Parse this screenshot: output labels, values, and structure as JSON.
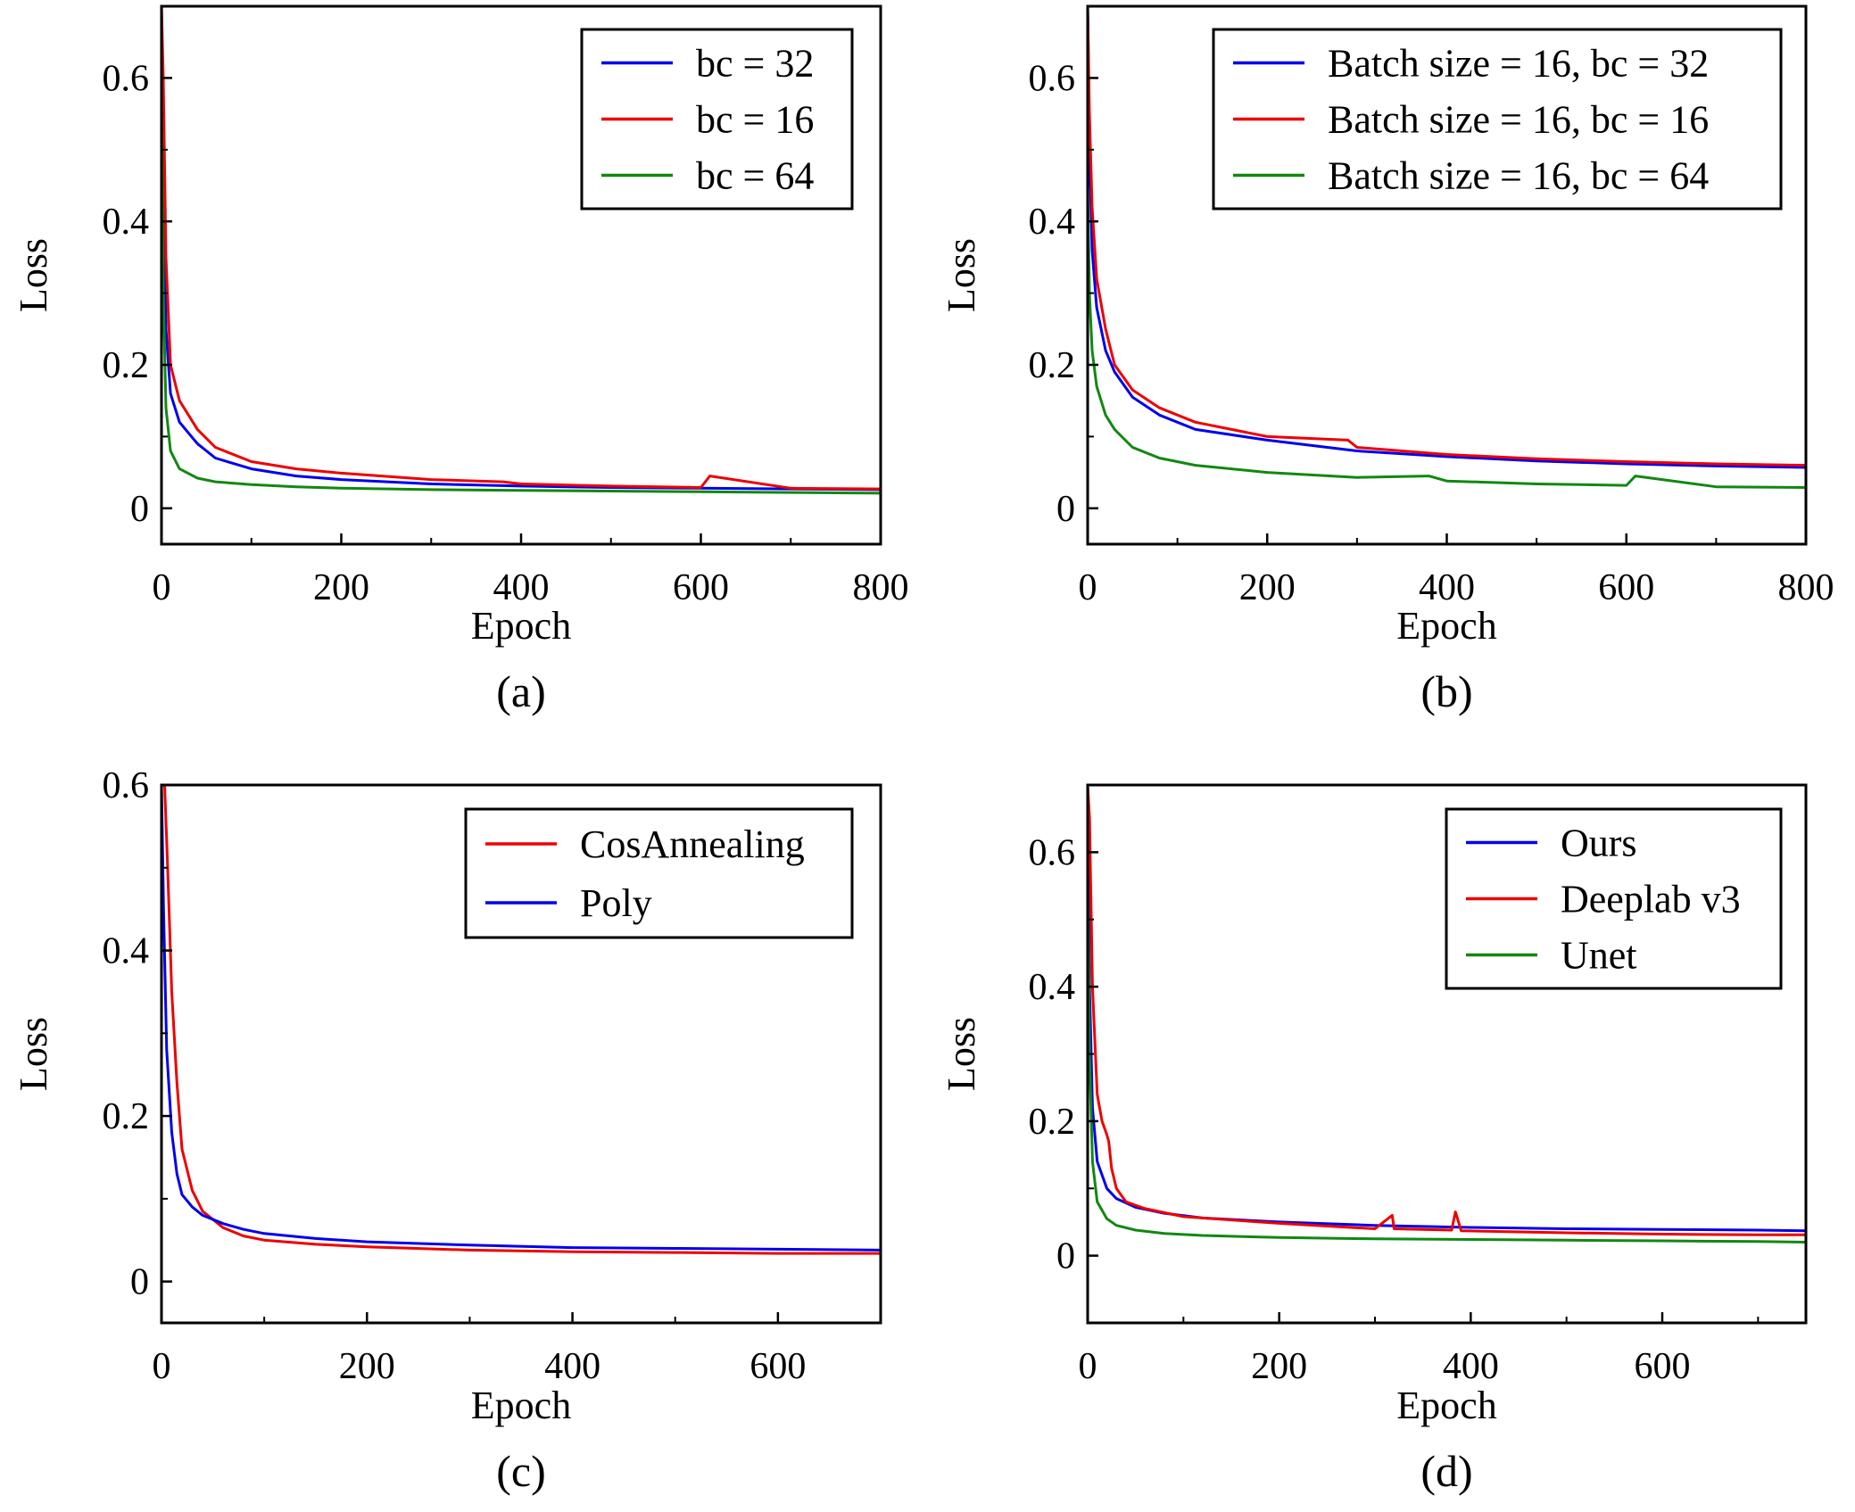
{
  "colors": {
    "blue": "#0000ee",
    "red": "#ee0000",
    "green": "#118811",
    "axis": "#000000"
  },
  "chart_data": [
    {
      "type": "line",
      "panel_label": "(a)",
      "xlabel": "Epoch",
      "ylabel": "Loss",
      "xlim": [
        0,
        800
      ],
      "ylim": [
        -0.05,
        0.7
      ],
      "xticks": [
        0,
        200,
        400,
        600,
        800
      ],
      "yticks": [
        0,
        0.2,
        0.4,
        0.6
      ],
      "xtick_labels": [
        "0",
        "200",
        "400",
        "600",
        "800"
      ],
      "ytick_labels": [
        "0",
        "0.2",
        "0.4",
        "0.6"
      ],
      "legend_position": "top-right",
      "grid": false,
      "series": [
        {
          "name": "bc = 32",
          "color": "blue",
          "x": [
            0,
            2,
            5,
            10,
            20,
            40,
            60,
            100,
            150,
            200,
            300,
            400,
            500,
            600,
            700,
            800
          ],
          "y": [
            0.7,
            0.45,
            0.25,
            0.16,
            0.12,
            0.09,
            0.07,
            0.055,
            0.045,
            0.04,
            0.034,
            0.031,
            0.029,
            0.028,
            0.027,
            0.026
          ]
        },
        {
          "name": "bc = 16",
          "color": "red",
          "x": [
            0,
            2,
            5,
            10,
            20,
            40,
            60,
            100,
            150,
            200,
            300,
            380,
            400,
            500,
            600,
            610,
            700,
            800
          ],
          "y": [
            0.7,
            0.6,
            0.35,
            0.2,
            0.15,
            0.11,
            0.085,
            0.065,
            0.055,
            0.049,
            0.04,
            0.037,
            0.034,
            0.031,
            0.029,
            0.045,
            0.028,
            0.027
          ]
        },
        {
          "name": "bc = 64",
          "color": "green",
          "x": [
            0,
            2,
            5,
            10,
            20,
            40,
            60,
            100,
            150,
            200,
            300,
            400,
            500,
            600,
            700,
            800
          ],
          "y": [
            0.57,
            0.3,
            0.14,
            0.08,
            0.055,
            0.042,
            0.037,
            0.033,
            0.03,
            0.028,
            0.026,
            0.025,
            0.024,
            0.023,
            0.022,
            0.021
          ]
        }
      ]
    },
    {
      "type": "line",
      "panel_label": "(b)",
      "xlabel": "Epoch",
      "ylabel": "Loss",
      "xlim": [
        0,
        800
      ],
      "ylim": [
        -0.05,
        0.7
      ],
      "xticks": [
        0,
        200,
        400,
        600,
        800
      ],
      "yticks": [
        0,
        0.2,
        0.4,
        0.6
      ],
      "xtick_labels": [
        "0",
        "200",
        "400",
        "600",
        "800"
      ],
      "ytick_labels": [
        "0",
        "0.2",
        "0.4",
        "0.6"
      ],
      "legend_position": "top-right",
      "grid": false,
      "series": [
        {
          "name": "Batch size = 16, bc = 32",
          "color": "blue",
          "x": [
            0,
            2,
            5,
            10,
            20,
            30,
            50,
            80,
            120,
            200,
            300,
            400,
            500,
            600,
            700,
            800
          ],
          "y": [
            0.7,
            0.5,
            0.36,
            0.28,
            0.22,
            0.19,
            0.155,
            0.13,
            0.11,
            0.095,
            0.08,
            0.072,
            0.066,
            0.062,
            0.059,
            0.057
          ]
        },
        {
          "name": "Batch size = 16, bc = 16",
          "color": "red",
          "x": [
            0,
            2,
            5,
            10,
            20,
            30,
            50,
            80,
            120,
            200,
            290,
            300,
            400,
            500,
            600,
            700,
            800
          ],
          "y": [
            0.7,
            0.55,
            0.42,
            0.32,
            0.25,
            0.2,
            0.165,
            0.14,
            0.12,
            0.1,
            0.095,
            0.085,
            0.075,
            0.069,
            0.065,
            0.062,
            0.06
          ]
        },
        {
          "name": "Batch size = 16, bc = 64",
          "color": "green",
          "x": [
            0,
            2,
            5,
            10,
            20,
            30,
            50,
            80,
            120,
            200,
            300,
            380,
            400,
            500,
            600,
            610,
            700,
            800
          ],
          "y": [
            0.45,
            0.3,
            0.22,
            0.17,
            0.13,
            0.11,
            0.085,
            0.07,
            0.06,
            0.05,
            0.043,
            0.045,
            0.038,
            0.034,
            0.032,
            0.045,
            0.03,
            0.029
          ]
        }
      ]
    },
    {
      "type": "line",
      "panel_label": "(c)",
      "xlabel": "Epoch",
      "ylabel": "Loss",
      "xlim": [
        0,
        700
      ],
      "ylim": [
        -0.05,
        0.6
      ],
      "xticks": [
        0,
        200,
        400,
        600
      ],
      "yticks": [
        0,
        0.2,
        0.4,
        0.6
      ],
      "xtick_labels": [
        "0",
        "200",
        "400",
        "600"
      ],
      "ytick_labels": [
        "0",
        "0.2",
        "0.4",
        "0.6"
      ],
      "legend_position": "top-right",
      "grid": false,
      "series": [
        {
          "name": "CosAnnealing",
          "color": "red",
          "x": [
            0,
            3,
            6,
            10,
            15,
            20,
            30,
            40,
            60,
            80,
            100,
            150,
            200,
            300,
            400,
            500,
            600,
            700
          ],
          "y": [
            0.6,
            0.6,
            0.5,
            0.35,
            0.24,
            0.16,
            0.11,
            0.085,
            0.065,
            0.055,
            0.05,
            0.045,
            0.042,
            0.038,
            0.036,
            0.035,
            0.034,
            0.034
          ]
        },
        {
          "name": "Poly",
          "color": "blue",
          "x": [
            0,
            2,
            5,
            10,
            15,
            20,
            30,
            40,
            60,
            80,
            100,
            150,
            200,
            300,
            400,
            500,
            600,
            700
          ],
          "y": [
            0.6,
            0.45,
            0.28,
            0.18,
            0.13,
            0.105,
            0.09,
            0.08,
            0.07,
            0.063,
            0.058,
            0.052,
            0.048,
            0.044,
            0.041,
            0.04,
            0.039,
            0.038
          ]
        }
      ]
    },
    {
      "type": "line",
      "panel_label": "(d)",
      "xlabel": "Epoch",
      "ylabel": "Loss",
      "xlim": [
        0,
        750
      ],
      "ylim": [
        -0.1,
        0.7
      ],
      "xticks": [
        0,
        200,
        400,
        600
      ],
      "yticks": [
        0,
        0.2,
        0.4,
        0.6
      ],
      "xtick_labels": [
        "0",
        "200",
        "400",
        "600"
      ],
      "ytick_labels": [
        "0",
        "0.2",
        "0.4",
        "0.6"
      ],
      "legend_position": "top-right",
      "grid": false,
      "series": [
        {
          "name": "Ours",
          "color": "blue",
          "x": [
            0,
            2,
            5,
            10,
            20,
            30,
            50,
            80,
            120,
            200,
            300,
            400,
            500,
            600,
            700,
            750
          ],
          "y": [
            0.7,
            0.4,
            0.22,
            0.14,
            0.1,
            0.085,
            0.072,
            0.063,
            0.056,
            0.05,
            0.045,
            0.042,
            0.04,
            0.039,
            0.038,
            0.037
          ]
        },
        {
          "name": "Deeplab v3",
          "color": "red",
          "x": [
            0,
            2,
            5,
            10,
            15,
            20,
            22,
            25,
            30,
            40,
            60,
            100,
            200,
            300,
            318,
            320,
            380,
            384,
            390,
            500,
            600,
            700,
            750
          ],
          "y": [
            0.7,
            0.65,
            0.4,
            0.24,
            0.2,
            0.18,
            0.17,
            0.13,
            0.1,
            0.08,
            0.07,
            0.058,
            0.048,
            0.04,
            0.06,
            0.04,
            0.038,
            0.065,
            0.037,
            0.034,
            0.032,
            0.031,
            0.031
          ]
        },
        {
          "name": "Unet",
          "color": "green",
          "x": [
            0,
            2,
            5,
            10,
            20,
            30,
            50,
            80,
            120,
            200,
            300,
            400,
            500,
            600,
            700,
            750
          ],
          "y": [
            0.57,
            0.3,
            0.14,
            0.08,
            0.055,
            0.045,
            0.038,
            0.033,
            0.03,
            0.027,
            0.025,
            0.024,
            0.023,
            0.022,
            0.021,
            0.02
          ]
        }
      ]
    }
  ]
}
